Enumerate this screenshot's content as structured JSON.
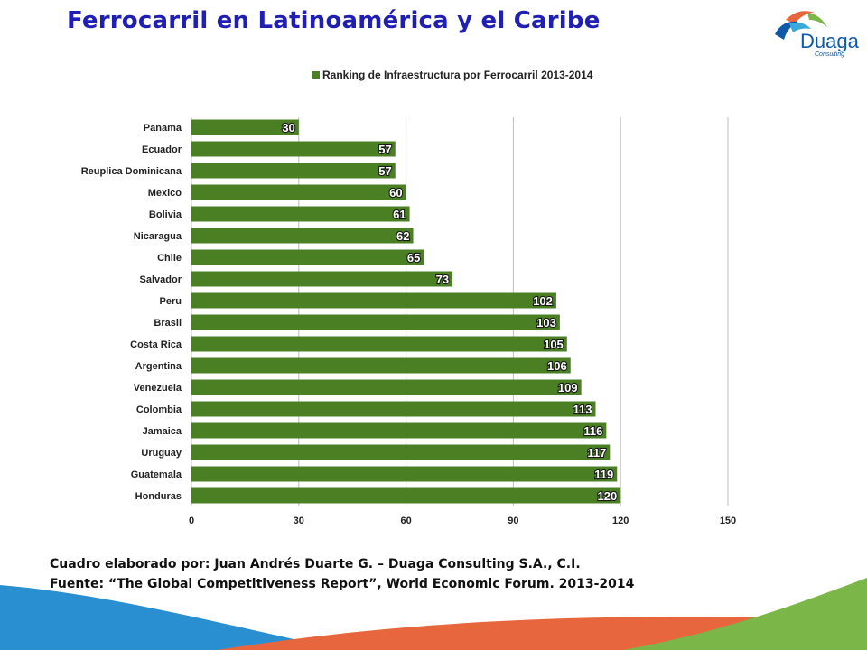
{
  "slide": {
    "title": "Ferrocarril en Latinoamérica y el Caribe",
    "footer_author": "Cuadro elaborado por: Juan Andrés Duarte  G. – Duaga Consulting S.A., C.I.",
    "footer_source": "Fuente: “The Global Competitiveness Report”, World Economic Forum. 2013-2014"
  },
  "logo": {
    "name": "Duaga",
    "tagline": "Consulting",
    "colors": {
      "blue": "#0f5aa8",
      "green": "#7ab648",
      "orange": "#e8663d",
      "light_blue": "#39a9dc"
    }
  },
  "chart_data": {
    "type": "bar",
    "orientation": "horizontal",
    "categories": [
      "Panama",
      "Ecuador",
      "Reuplica Dominicana",
      "Mexico",
      "Bolivia",
      "Nicaragua",
      "Chile",
      "Salvador",
      "Peru",
      "Brasil",
      "Costa Rica",
      "Argentina",
      "Venezuela",
      "Colombia",
      "Jamaica",
      "Uruguay",
      "Guatemala",
      "Honduras"
    ],
    "series": [
      {
        "name": "Ranking de Infraestructura por Ferrocarril 2013-2014",
        "values": [
          30,
          57,
          57,
          60,
          61,
          62,
          65,
          73,
          102,
          103,
          105,
          106,
          109,
          113,
          116,
          117,
          119,
          120
        ],
        "color": "#4a7f23"
      }
    ],
    "xlim": [
      0,
      150
    ],
    "xticks": [
      0,
      30,
      60,
      90,
      120,
      150
    ],
    "grid": "vertical",
    "legend": "top-center",
    "data_labels": true
  }
}
